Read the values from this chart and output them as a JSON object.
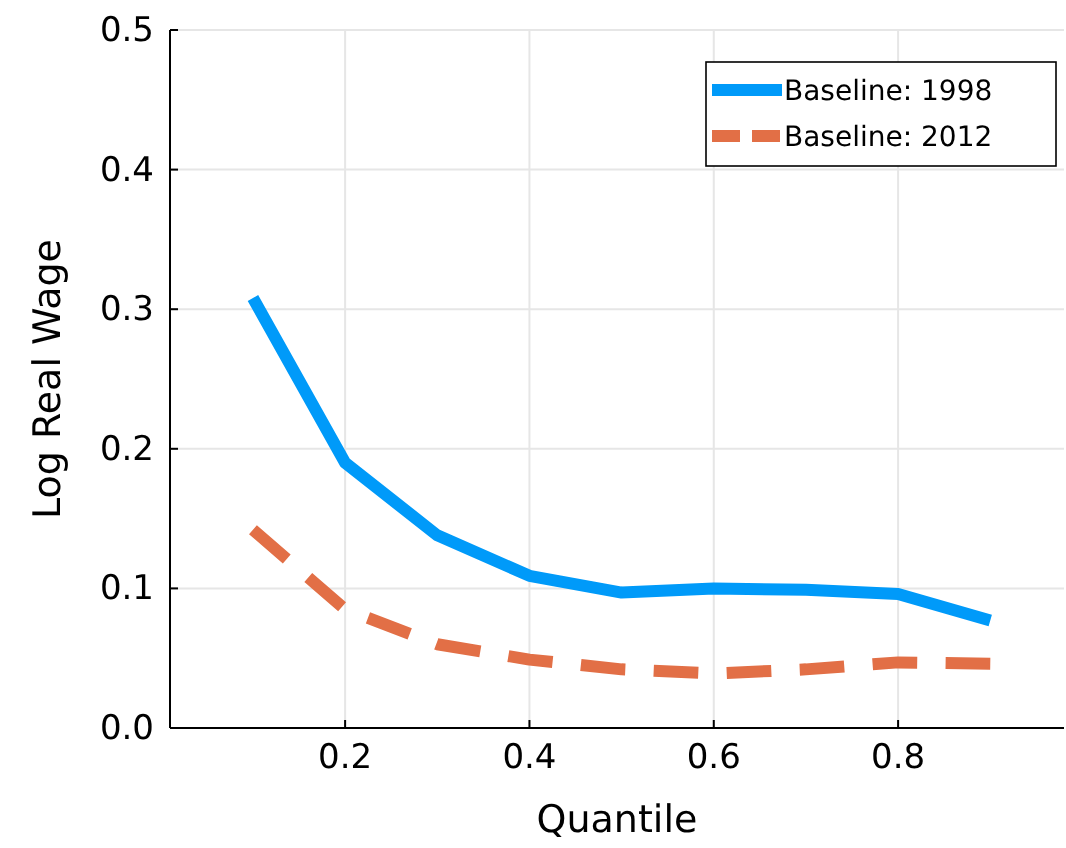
{
  "chart_data": {
    "type": "line",
    "xlabel": "Quantile",
    "ylabel": "Log Real Wage",
    "x": [
      0.1,
      0.2,
      0.3,
      0.4,
      0.5,
      0.6,
      0.7,
      0.8,
      0.9
    ],
    "series": [
      {
        "name": "Baseline: 1998",
        "color": "#009af9",
        "line_style": "solid",
        "values": [
          0.308,
          0.19,
          0.138,
          0.109,
          0.097,
          0.1,
          0.099,
          0.096,
          0.077
        ]
      },
      {
        "name": "Baseline: 2012",
        "color": "#e26f46",
        "line_style": "dashed",
        "values": [
          0.142,
          0.085,
          0.06,
          0.049,
          0.042,
          0.039,
          0.042,
          0.047,
          0.046
        ]
      }
    ],
    "xlim": [
      0.01,
      0.98
    ],
    "xticks": [
      0.2,
      0.4,
      0.6,
      0.8
    ],
    "ylim": [
      0,
      0.5
    ],
    "yticks": [
      {
        "value": 0,
        "label": "0.0"
      },
      0.1,
      0.2,
      0.3,
      0.4,
      0.5
    ],
    "grid": true,
    "legend": "top right"
  }
}
